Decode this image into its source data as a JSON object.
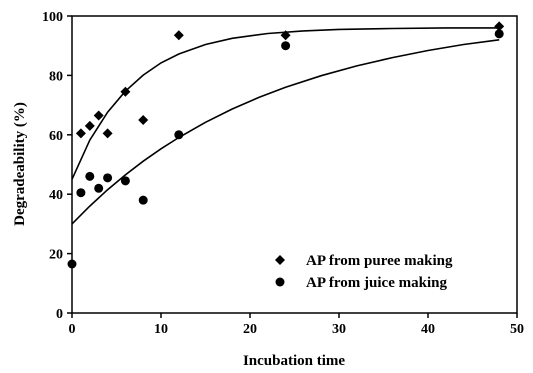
{
  "chart_data": {
    "type": "scatter",
    "xlabel": "Incubation time",
    "ylabel": "Degradeability (%)",
    "xlim": [
      0,
      50
    ],
    "ylim": [
      0,
      100
    ],
    "x_ticks": [
      "0",
      "10",
      "20",
      "30",
      "40",
      "50"
    ],
    "y_ticks": [
      "0",
      "20",
      "40",
      "60",
      "80",
      "100"
    ],
    "grid": false,
    "legend_position": "bottom-right",
    "series": [
      {
        "name": "AP from puree making",
        "marker": "diamond",
        "color": "#000000",
        "points": [
          {
            "x": 1,
            "y": 60.5
          },
          {
            "x": 2,
            "y": 63
          },
          {
            "x": 3,
            "y": 66.5
          },
          {
            "x": 4,
            "y": 60.5
          },
          {
            "x": 6,
            "y": 74.5
          },
          {
            "x": 8,
            "y": 65
          },
          {
            "x": 12,
            "y": 93.5
          },
          {
            "x": 24,
            "y": 93.5
          },
          {
            "x": 48,
            "y": 96.5
          }
        ],
        "fit_curve": [
          {
            "x": 0,
            "y": 45
          },
          {
            "x": 2,
            "y": 58.2
          },
          {
            "x": 4,
            "y": 67.6
          },
          {
            "x": 6,
            "y": 74.7
          },
          {
            "x": 8,
            "y": 80.1
          },
          {
            "x": 10,
            "y": 84.2
          },
          {
            "x": 12,
            "y": 87.2
          },
          {
            "x": 15,
            "y": 90.4
          },
          {
            "x": 18,
            "y": 92.5
          },
          {
            "x": 22,
            "y": 94.1
          },
          {
            "x": 26,
            "y": 95.0
          },
          {
            "x": 30,
            "y": 95.5
          },
          {
            "x": 36,
            "y": 95.8
          },
          {
            "x": 42,
            "y": 96.0
          },
          {
            "x": 48,
            "y": 96.0
          }
        ]
      },
      {
        "name": "AP from juice making",
        "marker": "circle",
        "color": "#000000",
        "points": [
          {
            "x": 0,
            "y": 16.5
          },
          {
            "x": 1,
            "y": 40.5
          },
          {
            "x": 2,
            "y": 46
          },
          {
            "x": 3,
            "y": 42
          },
          {
            "x": 4,
            "y": 45.5
          },
          {
            "x": 6,
            "y": 44.5
          },
          {
            "x": 8,
            "y": 38
          },
          {
            "x": 12,
            "y": 60
          },
          {
            "x": 24,
            "y": 90
          },
          {
            "x": 48,
            "y": 94
          }
        ],
        "fit_curve": [
          {
            "x": 0,
            "y": 30
          },
          {
            "x": 2,
            "y": 36
          },
          {
            "x": 4,
            "y": 41.5
          },
          {
            "x": 6,
            "y": 46.5
          },
          {
            "x": 8,
            "y": 51.1
          },
          {
            "x": 10,
            "y": 55.3
          },
          {
            "x": 12,
            "y": 59.1
          },
          {
            "x": 15,
            "y": 64.2
          },
          {
            "x": 18,
            "y": 68.7
          },
          {
            "x": 21,
            "y": 72.6
          },
          {
            "x": 24,
            "y": 76.0
          },
          {
            "x": 28,
            "y": 79.9
          },
          {
            "x": 32,
            "y": 83.2
          },
          {
            "x": 36,
            "y": 86.0
          },
          {
            "x": 40,
            "y": 88.4
          },
          {
            "x": 44,
            "y": 90.4
          },
          {
            "x": 48,
            "y": 92.0
          }
        ]
      }
    ]
  }
}
